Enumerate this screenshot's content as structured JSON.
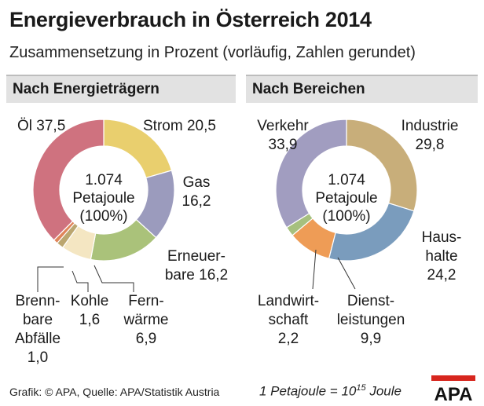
{
  "header": {
    "title": "Energieverbrauch in Österreich 2014",
    "subtitle": "Zusammensetzung in Prozent (vorläufig, Zahlen gerundet)"
  },
  "chart_data": [
    {
      "type": "pie",
      "title": "Nach Energieträgern",
      "center_value": "1.074",
      "center_unit": "Petajoule",
      "center_pct": "(100%)",
      "slices": [
        {
          "key": "strom",
          "lines": [
            "Strom 20,5"
          ],
          "value": 20.5,
          "color": "#e9cf6e"
        },
        {
          "key": "gas",
          "lines": [
            "Gas",
            "16,2"
          ],
          "value": 16.2,
          "color": "#9b9bbd"
        },
        {
          "key": "erneuerbare",
          "lines": [
            "Erneuer-",
            "bare 16,2"
          ],
          "value": 16.2,
          "color": "#aac27a"
        },
        {
          "key": "fernwaerme",
          "lines": [
            "Fern-",
            "wärme",
            "6,9"
          ],
          "value": 6.9,
          "color": "#f4e6c2"
        },
        {
          "key": "kohle",
          "lines": [
            "Kohle",
            "1,6"
          ],
          "value": 1.6,
          "color": "#bba66f"
        },
        {
          "key": "brennbare",
          "lines": [
            "Brenn-",
            "bare",
            "Abfälle",
            "1,0"
          ],
          "value": 1.0,
          "color": "#e0855a"
        },
        {
          "key": "oel",
          "lines": [
            "Öl 37,5"
          ],
          "value": 37.5,
          "color": "#cf727f"
        }
      ]
    },
    {
      "type": "pie",
      "title": "Nach Bereichen",
      "center_value": "1.074",
      "center_unit": "Petajoule",
      "center_pct": "(100%)",
      "slices": [
        {
          "key": "industrie",
          "lines": [
            "Industrie",
            "29,8"
          ],
          "value": 29.8,
          "color": "#c8ae7a"
        },
        {
          "key": "haushalte",
          "lines": [
            "Haus-",
            "halte",
            "24,2"
          ],
          "value": 24.2,
          "color": "#7a9cbd"
        },
        {
          "key": "dienst",
          "lines": [
            "Dienst-",
            "leistungen",
            "9,9"
          ],
          "value": 9.9,
          "color": "#ee9c56"
        },
        {
          "key": "landwirt",
          "lines": [
            "Landwirt-",
            "schaft",
            "2,2"
          ],
          "value": 2.2,
          "color": "#a6c07e"
        },
        {
          "key": "verkehr",
          "lines": [
            "Verkehr",
            "33,9"
          ],
          "value": 33.9,
          "color": "#a19dc0"
        }
      ]
    }
  ],
  "footer": {
    "source": "Grafik: © APA, Quelle: APA/Statistik Austria",
    "note_prefix": "1 Petajoule = 10",
    "note_exp": "15",
    "note_suffix": " Joule",
    "logo_text": "APA",
    "logo_accent": "#d7261e"
  }
}
